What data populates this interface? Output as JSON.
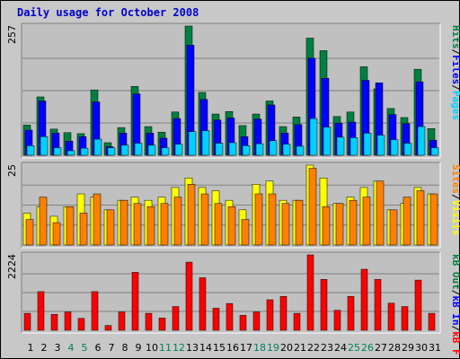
{
  "title": "Daily usage for October 2008",
  "colors": {
    "pages": "#00d0ff",
    "files": "#0000ff",
    "hits": "#008040",
    "visits": "#ffff00",
    "sites": "#ff8000",
    "kbf": "#ff0000",
    "kbin": "#0000ff",
    "kbout": "#008040",
    "weekday_tick": "#000000",
    "weekend_tick": "#00805c"
  },
  "chart_data": [
    {
      "type": "bar",
      "name": "hits-files-pages",
      "ylabel_max": "257",
      "ylim": [
        0,
        257
      ],
      "legend": [
        {
          "name": "Pages",
          "color": "#00d0ff"
        },
        {
          "name": "/",
          "color": "#000000"
        },
        {
          "name": "Files",
          "color": "#0000ff"
        },
        {
          "name": "/",
          "color": "#000000"
        },
        {
          "name": "Hits",
          "color": "#008040"
        }
      ],
      "categories": [
        "1",
        "2",
        "3",
        "4",
        "5",
        "6",
        "7",
        "8",
        "9",
        "10",
        "11",
        "12",
        "13",
        "14",
        "15",
        "16",
        "17",
        "18",
        "19",
        "20",
        "21",
        "22",
        "23",
        "24",
        "25",
        "26",
        "27",
        "28",
        "29",
        "30",
        "31"
      ],
      "weekend": [
        4,
        5,
        11,
        12,
        18,
        19,
        25,
        26
      ],
      "series": [
        {
          "name": "Hits",
          "values": [
            60,
            116,
            52,
            45,
            43,
            130,
            25,
            55,
            137,
            57,
            46,
            86,
            257,
            125,
            82,
            87,
            59,
            82,
            108,
            57,
            76,
            233,
            208,
            77,
            86,
            176,
            132,
            93,
            75,
            171,
            53
          ]
        },
        {
          "name": "Files",
          "values": [
            50,
            108,
            44,
            28,
            37,
            106,
            17,
            44,
            122,
            44,
            34,
            73,
            219,
            111,
            70,
            74,
            37,
            72,
            100,
            44,
            61,
            193,
            153,
            64,
            66,
            149,
            144,
            81,
            63,
            146,
            30
          ]
        },
        {
          "name": "Pages",
          "values": [
            19,
            37,
            15,
            9,
            14,
            32,
            15,
            20,
            24,
            20,
            15,
            22,
            47,
            49,
            24,
            25,
            19,
            23,
            29,
            22,
            18,
            73,
            56,
            36,
            35,
            44,
            40,
            31,
            24,
            57,
            15
          ]
        }
      ]
    },
    {
      "type": "bar",
      "name": "visits-sites",
      "ylabel_max": "25",
      "ylim": [
        0,
        25
      ],
      "legend": [
        {
          "name": "Visits",
          "color": "#ffff00"
        },
        {
          "name": "/",
          "color": "#000000"
        },
        {
          "name": "Sites",
          "color": "#ff8000"
        }
      ],
      "categories": [
        "1",
        "2",
        "3",
        "4",
        "5",
        "6",
        "7",
        "8",
        "9",
        "10",
        "11",
        "12",
        "13",
        "14",
        "15",
        "16",
        "17",
        "18",
        "19",
        "20",
        "21",
        "22",
        "23",
        "24",
        "25",
        "26",
        "27",
        "28",
        "29",
        "30",
        "31"
      ],
      "series": [
        {
          "name": "Visits",
          "values": [
            10,
            12,
            9,
            12,
            16,
            15,
            11,
            14,
            15,
            14,
            15,
            18,
            21,
            18,
            17,
            14,
            11,
            19,
            20,
            14,
            14,
            25,
            21,
            13,
            15,
            18,
            20,
            11,
            13,
            18,
            16
          ]
        },
        {
          "name": "Sites",
          "values": [
            8,
            15,
            7,
            12,
            10,
            16,
            11,
            14,
            13,
            12,
            13,
            15,
            19,
            16,
            13,
            12,
            8,
            16,
            16,
            13,
            14,
            24,
            12,
            13,
            14,
            15,
            20,
            11,
            15,
            17,
            16
          ]
        }
      ]
    },
    {
      "type": "bar",
      "name": "kbytes",
      "ylabel_max": "2224",
      "ylim": [
        0,
        2224
      ],
      "legend": [
        {
          "name": "kB F",
          "color": "#ff0000"
        },
        {
          "name": "/",
          "color": "#000000"
        },
        {
          "name": "kB In",
          "color": "#0000ff"
        },
        {
          "name": "/",
          "color": "#000000"
        },
        {
          "name": "kB Out",
          "color": "#008040"
        }
      ],
      "categories": [
        "1",
        "2",
        "3",
        "4",
        "5",
        "6",
        "7",
        "8",
        "9",
        "10",
        "11",
        "12",
        "13",
        "14",
        "15",
        "16",
        "17",
        "18",
        "19",
        "20",
        "21",
        "22",
        "23",
        "24",
        "25",
        "26",
        "27",
        "28",
        "29",
        "30",
        "31"
      ],
      "series": [
        {
          "name": "kB F",
          "values": [
            500,
            1140,
            470,
            540,
            350,
            1140,
            140,
            540,
            1710,
            500,
            360,
            700,
            2010,
            1550,
            650,
            790,
            440,
            540,
            900,
            1000,
            500,
            2224,
            1500,
            590,
            1000,
            1800,
            1500,
            800,
            700,
            1480,
            500
          ]
        }
      ]
    }
  ]
}
